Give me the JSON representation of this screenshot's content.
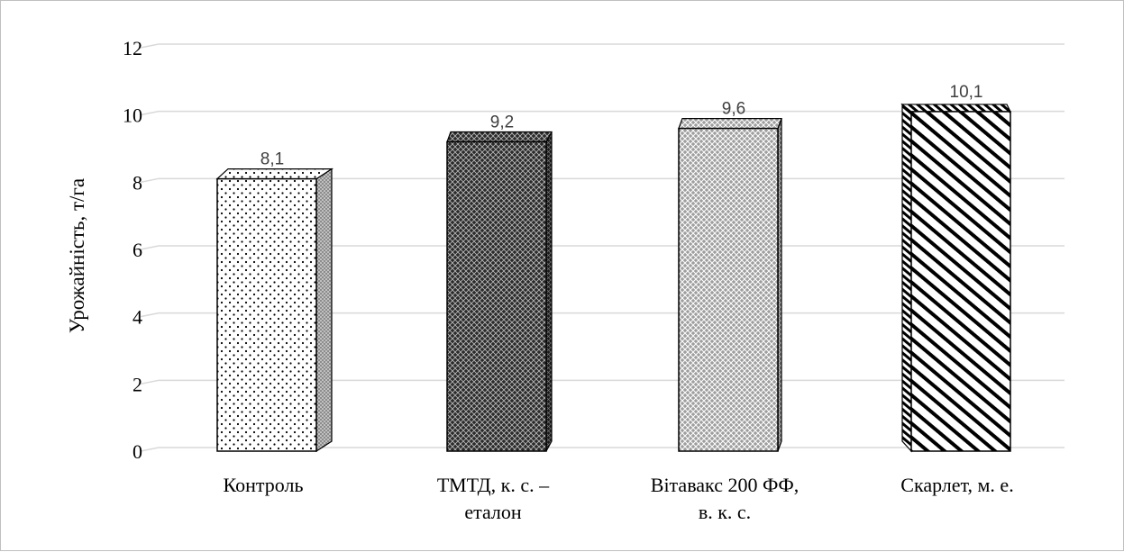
{
  "chart_data": {
    "type": "bar",
    "categories": [
      [
        "Контроль"
      ],
      [
        "ТМТД, к. с. –",
        "еталон"
      ],
      [
        "Вітавакс 200 ФФ,",
        "в. к. с."
      ],
      [
        "Скарлет, м. е."
      ]
    ],
    "values": [
      8.1,
      9.2,
      9.6,
      10.1
    ],
    "data_labels": [
      "8,1",
      "9,2",
      "9,6",
      "10,1"
    ],
    "ylabel": "Урожайність, т/га",
    "xlabel": "",
    "ylim": [
      0,
      12
    ],
    "yticks": [
      0,
      2,
      4,
      6,
      8,
      10,
      12
    ],
    "grid": true,
    "style": "3d-column",
    "colors": {
      "grid": "#d9d9d9",
      "outline": "#000000",
      "label": "#404040"
    },
    "patterns": [
      "dots",
      "dark-crosshatch",
      "light-crosshatch",
      "diagonal-stripes"
    ]
  }
}
